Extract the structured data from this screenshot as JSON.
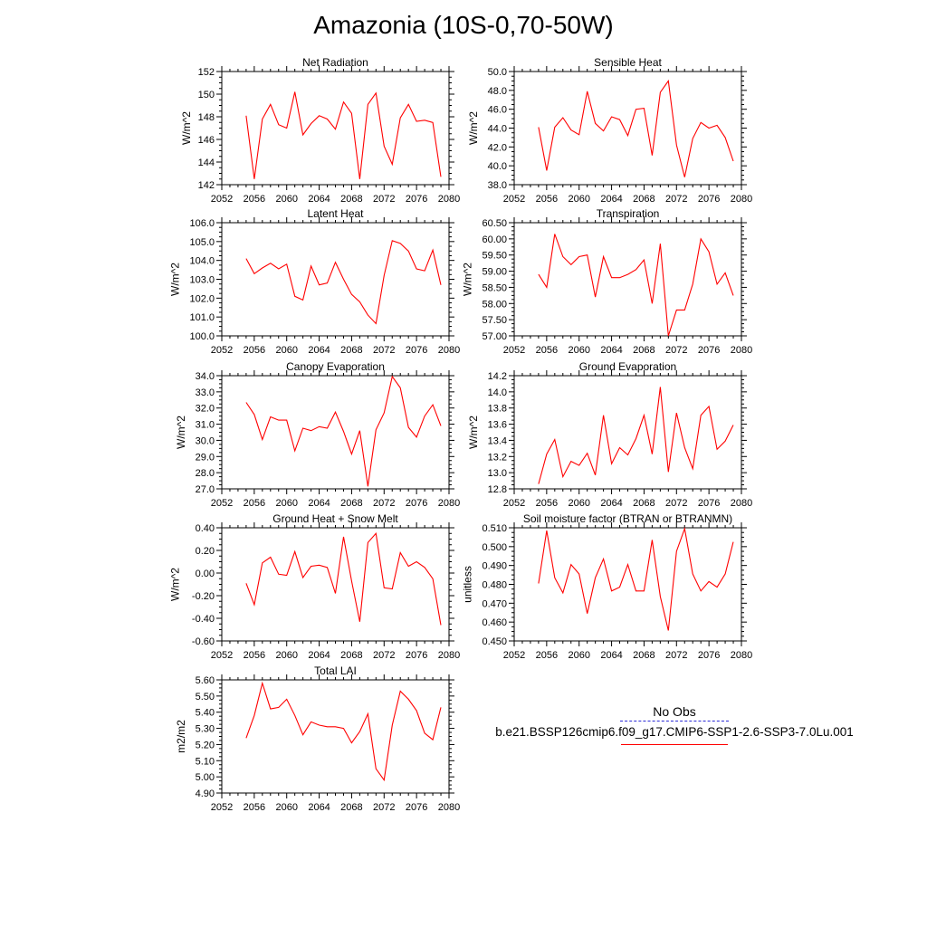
{
  "title": "Amazonia (10S-0,70-50W)",
  "legend": {
    "obs_label": "No Obs",
    "case_label": "b.e21.BSSP126cmip6.f09_g17.CMIP6-SSP1-2.6-SSP3-7.0Lu.001",
    "obs_color": "#2b2bd6",
    "case_color": "#ff0000"
  },
  "chart_data": [
    {
      "type": "line",
      "title": "Net Radiation",
      "ylabel": "W/m^2",
      "x": [
        2055,
        2056,
        2057,
        2058,
        2059,
        2060,
        2061,
        2062,
        2063,
        2064,
        2065,
        2066,
        2067,
        2068,
        2069,
        2070,
        2071,
        2072,
        2073,
        2074,
        2075,
        2076,
        2077,
        2078,
        2079
      ],
      "values": [
        148.1,
        142.5,
        147.8,
        149.1,
        147.3,
        147.0,
        150.2,
        146.4,
        147.4,
        148.1,
        147.8,
        146.9,
        149.3,
        148.3,
        142.5,
        149.1,
        150.1,
        145.4,
        143.8,
        147.9,
        149.1,
        147.6,
        147.7,
        147.5,
        142.7
      ],
      "xlim": [
        2052,
        2080
      ],
      "ylim": [
        142,
        152
      ],
      "xticks": [
        "2052",
        "2056",
        "2060",
        "2064",
        "2068",
        "2072",
        "2076",
        "2080"
      ],
      "yticks": [
        "142",
        "144",
        "146",
        "148",
        "150",
        "152"
      ],
      "color": "#ff0000"
    },
    {
      "type": "line",
      "title": "Sensible Heat",
      "ylabel": "W/m^2",
      "x": [
        2055,
        2056,
        2057,
        2058,
        2059,
        2060,
        2061,
        2062,
        2063,
        2064,
        2065,
        2066,
        2067,
        2068,
        2069,
        2070,
        2071,
        2072,
        2073,
        2074,
        2075,
        2076,
        2077,
        2078,
        2079
      ],
      "values": [
        44.1,
        39.5,
        44.1,
        45.1,
        43.8,
        43.3,
        47.9,
        44.5,
        43.7,
        45.2,
        44.9,
        43.2,
        46.0,
        46.1,
        41.1,
        47.8,
        49.0,
        42.2,
        38.8,
        42.9,
        44.6,
        44.0,
        44.3,
        43.0,
        40.5
      ],
      "xlim": [
        2052,
        2080
      ],
      "ylim": [
        38.0,
        50.0
      ],
      "xticks": [
        "2052",
        "2056",
        "2060",
        "2064",
        "2068",
        "2072",
        "2076",
        "2080"
      ],
      "yticks": [
        "38.0",
        "40.0",
        "42.0",
        "44.0",
        "46.0",
        "48.0",
        "50.0"
      ],
      "color": "#ff0000"
    },
    {
      "type": "line",
      "title": "Latent Heat",
      "ylabel": "W/m^2",
      "x": [
        2055,
        2056,
        2057,
        2058,
        2059,
        2060,
        2061,
        2062,
        2063,
        2064,
        2065,
        2066,
        2067,
        2068,
        2069,
        2070,
        2071,
        2072,
        2073,
        2074,
        2075,
        2076,
        2077,
        2078,
        2079
      ],
      "values": [
        104.1,
        103.3,
        103.6,
        103.85,
        103.55,
        103.8,
        102.1,
        101.9,
        103.7,
        102.7,
        102.8,
        103.9,
        103.0,
        102.2,
        101.8,
        101.1,
        100.65,
        103.2,
        105.05,
        104.9,
        104.5,
        103.55,
        103.45,
        104.55,
        102.7
      ],
      "xlim": [
        2052,
        2080
      ],
      "ylim": [
        100.0,
        106.0
      ],
      "xticks": [
        "2052",
        "2056",
        "2060",
        "2064",
        "2068",
        "2072",
        "2076",
        "2080"
      ],
      "yticks": [
        "100.0",
        "101.0",
        "102.0",
        "103.0",
        "104.0",
        "105.0",
        "106.0"
      ],
      "color": "#ff0000"
    },
    {
      "type": "line",
      "title": "Transpiration",
      "ylabel": "W/m^2",
      "x": [
        2055,
        2056,
        2057,
        2058,
        2059,
        2060,
        2061,
        2062,
        2063,
        2064,
        2065,
        2066,
        2067,
        2068,
        2069,
        2070,
        2071,
        2072,
        2073,
        2074,
        2075,
        2076,
        2077,
        2078,
        2079
      ],
      "values": [
        58.9,
        58.5,
        60.15,
        59.45,
        59.2,
        59.45,
        59.5,
        58.2,
        59.45,
        58.8,
        58.8,
        58.9,
        59.05,
        59.35,
        58.0,
        59.85,
        57.0,
        57.8,
        57.8,
        58.6,
        60.0,
        59.6,
        58.6,
        58.95,
        58.25
      ],
      "xlim": [
        2052,
        2080
      ],
      "ylim": [
        57.0,
        60.5
      ],
      "xticks": [
        "2052",
        "2056",
        "2060",
        "2064",
        "2068",
        "2072",
        "2076",
        "2080"
      ],
      "yticks": [
        "57.00",
        "57.50",
        "58.00",
        "58.50",
        "59.00",
        "59.50",
        "60.00",
        "60.50"
      ],
      "color": "#ff0000"
    },
    {
      "type": "line",
      "title": "Canopy Evaporation",
      "ylabel": "W/m^2",
      "x": [
        2055,
        2056,
        2057,
        2058,
        2059,
        2060,
        2061,
        2062,
        2063,
        2064,
        2065,
        2066,
        2067,
        2068,
        2069,
        2070,
        2071,
        2072,
        2073,
        2074,
        2075,
        2076,
        2077,
        2078,
        2079
      ],
      "values": [
        32.35,
        31.6,
        30.05,
        31.45,
        31.25,
        31.25,
        29.35,
        30.75,
        30.6,
        30.85,
        30.75,
        31.75,
        30.55,
        29.15,
        30.6,
        27.15,
        30.65,
        31.7,
        33.95,
        33.25,
        30.8,
        30.2,
        31.5,
        32.2,
        30.9
      ],
      "xlim": [
        2052,
        2080
      ],
      "ylim": [
        27.0,
        34.0
      ],
      "xticks": [
        "2052",
        "2056",
        "2060",
        "2064",
        "2068",
        "2072",
        "2076",
        "2080"
      ],
      "yticks": [
        "27.0",
        "28.0",
        "29.0",
        "30.0",
        "31.0",
        "32.0",
        "33.0",
        "34.0"
      ],
      "color": "#ff0000"
    },
    {
      "type": "line",
      "title": "Ground Evaporation",
      "ylabel": "W/m^2",
      "x": [
        2055,
        2056,
        2057,
        2058,
        2059,
        2060,
        2061,
        2062,
        2063,
        2064,
        2065,
        2066,
        2067,
        2068,
        2069,
        2070,
        2071,
        2072,
        2073,
        2074,
        2075,
        2076,
        2077,
        2078,
        2079
      ],
      "values": [
        12.86,
        13.23,
        13.41,
        12.95,
        13.14,
        13.09,
        13.24,
        12.97,
        13.71,
        13.11,
        13.31,
        13.22,
        13.42,
        13.71,
        13.23,
        14.06,
        13.01,
        13.74,
        13.31,
        13.05,
        13.71,
        13.82,
        13.29,
        13.39,
        13.59
      ],
      "xlim": [
        2052,
        2080
      ],
      "ylim": [
        12.8,
        14.2
      ],
      "xticks": [
        "2052",
        "2056",
        "2060",
        "2064",
        "2068",
        "2072",
        "2076",
        "2080"
      ],
      "yticks": [
        "12.8",
        "13.0",
        "13.2",
        "13.4",
        "13.6",
        "13.8",
        "14.0",
        "14.2"
      ],
      "color": "#ff0000"
    },
    {
      "type": "line",
      "title": "Ground Heat + Snow Melt",
      "ylabel": "W/m^2",
      "x": [
        2055,
        2056,
        2057,
        2058,
        2059,
        2060,
        2061,
        2062,
        2063,
        2064,
        2065,
        2066,
        2067,
        2068,
        2069,
        2070,
        2071,
        2072,
        2073,
        2074,
        2075,
        2076,
        2077,
        2078,
        2079
      ],
      "values": [
        -0.09,
        -0.28,
        0.09,
        0.14,
        -0.01,
        -0.02,
        0.19,
        -0.04,
        0.06,
        0.07,
        0.05,
        -0.18,
        0.32,
        -0.07,
        -0.43,
        0.27,
        0.35,
        -0.13,
        -0.14,
        0.18,
        0.06,
        0.1,
        0.05,
        -0.05,
        -0.46
      ],
      "xlim": [
        2052,
        2080
      ],
      "ylim": [
        -0.6,
        0.4
      ],
      "xticks": [
        "2052",
        "2056",
        "2060",
        "2064",
        "2068",
        "2072",
        "2076",
        "2080"
      ],
      "yticks": [
        "-0.60",
        "-0.40",
        "-0.20",
        "0.00",
        "0.20",
        "0.40"
      ],
      "color": "#ff0000"
    },
    {
      "type": "line",
      "title": "Soil moisture factor (BTRAN or BTRANMN)",
      "ylabel": "unitless",
      "x": [
        2055,
        2056,
        2057,
        2058,
        2059,
        2060,
        2061,
        2062,
        2063,
        2064,
        2065,
        2066,
        2067,
        2068,
        2069,
        2070,
        2071,
        2072,
        2073,
        2074,
        2075,
        2076,
        2077,
        2078,
        2079
      ],
      "values": [
        0.4805,
        0.5085,
        0.4835,
        0.4755,
        0.4905,
        0.4855,
        0.4645,
        0.4835,
        0.4935,
        0.4765,
        0.4785,
        0.4905,
        0.4765,
        0.4765,
        0.5035,
        0.4735,
        0.4555,
        0.4975,
        0.5095,
        0.4855,
        0.4765,
        0.4815,
        0.4785,
        0.4855,
        0.5025
      ],
      "xlim": [
        2052,
        2080
      ],
      "ylim": [
        0.45,
        0.51
      ],
      "xticks": [
        "2052",
        "2056",
        "2060",
        "2064",
        "2068",
        "2072",
        "2076",
        "2080"
      ],
      "yticks": [
        "0.450",
        "0.460",
        "0.470",
        "0.480",
        "0.490",
        "0.500",
        "0.510"
      ],
      "color": "#ff0000"
    },
    {
      "type": "line",
      "title": "Total LAI",
      "ylabel": "m2/m2",
      "x": [
        2055,
        2056,
        2057,
        2058,
        2059,
        2060,
        2061,
        2062,
        2063,
        2064,
        2065,
        2066,
        2067,
        2068,
        2069,
        2070,
        2071,
        2072,
        2073,
        2074,
        2075,
        2076,
        2077,
        2078,
        2079
      ],
      "values": [
        5.24,
        5.38,
        5.58,
        5.42,
        5.43,
        5.48,
        5.38,
        5.26,
        5.34,
        5.32,
        5.31,
        5.31,
        5.3,
        5.21,
        5.28,
        5.39,
        5.05,
        4.98,
        5.32,
        5.53,
        5.48,
        5.41,
        5.27,
        5.23,
        5.43
      ],
      "xlim": [
        2052,
        2080
      ],
      "ylim": [
        4.9,
        5.6
      ],
      "xticks": [
        "2052",
        "2056",
        "2060",
        "2064",
        "2068",
        "2072",
        "2076",
        "2080"
      ],
      "yticks": [
        "4.90",
        "5.00",
        "5.10",
        "5.20",
        "5.30",
        "5.40",
        "5.50",
        "5.60"
      ],
      "color": "#ff0000"
    }
  ]
}
